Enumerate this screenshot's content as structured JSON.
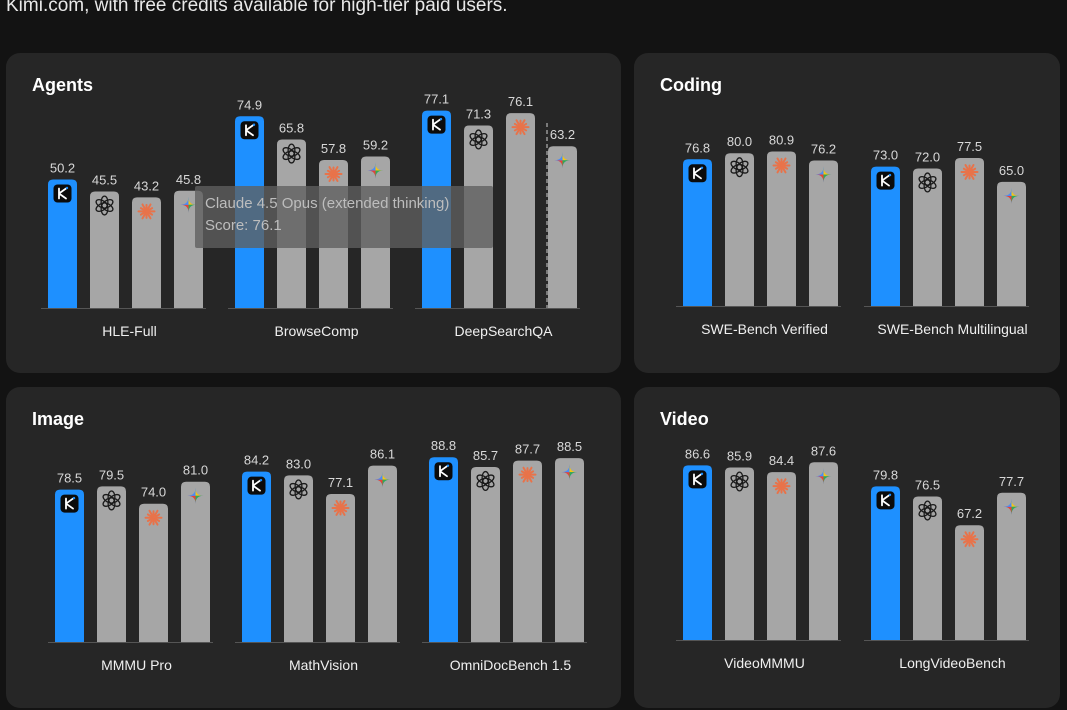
{
  "intro_text": "Kimi.com, with free credits available for high-tier paid users.",
  "colors": {
    "kimi": "#1e90ff",
    "other": "#a6a6a6",
    "panel": "#262626",
    "background": "#131313"
  },
  "models": [
    {
      "name": "Kimi",
      "icon": "kimi-logo-icon"
    },
    {
      "name": "GPT",
      "icon": "openai-logo-icon"
    },
    {
      "name": "Claude",
      "icon": "claude-starburst-icon"
    },
    {
      "name": "Gemini",
      "icon": "gemini-sparkle-icon"
    }
  ],
  "panels": {
    "agents": {
      "title": "Agents"
    },
    "coding": {
      "title": "Coding"
    },
    "image": {
      "title": "Image"
    },
    "video": {
      "title": "Video"
    }
  },
  "tooltip": {
    "model": "Claude 4.5 Opus (extended thinking)",
    "score": "Score: 76.1"
  },
  "chart_data": [
    {
      "type": "bar",
      "title": "Agents",
      "categories": [
        "HLE-Full",
        "BrowseComp",
        "DeepSearchQA"
      ],
      "series": [
        {
          "name": "Kimi",
          "values": [
            50.2,
            74.9,
            77.1
          ]
        },
        {
          "name": "GPT",
          "values": [
            45.5,
            65.8,
            71.3
          ]
        },
        {
          "name": "Claude",
          "values": [
            43.2,
            57.8,
            76.1
          ]
        },
        {
          "name": "Gemini",
          "values": [
            45.8,
            59.2,
            63.2
          ]
        }
      ],
      "value_labels": [
        [
          "50.2",
          "45.5",
          "43.2",
          "45.8"
        ],
        [
          "74.9",
          "65.8",
          "57.8",
          "59.2"
        ],
        [
          "77.1",
          "71.3",
          "76.1",
          "63.2"
        ]
      ]
    },
    {
      "type": "bar",
      "title": "Coding",
      "categories": [
        "SWE-Bench Verified",
        "SWE-Bench Multilingual"
      ],
      "series": [
        {
          "name": "Kimi",
          "values": [
            76.8,
            73.0
          ]
        },
        {
          "name": "GPT",
          "values": [
            80.0,
            72.0
          ]
        },
        {
          "name": "Claude",
          "values": [
            80.9,
            77.5
          ]
        },
        {
          "name": "Gemini",
          "values": [
            76.2,
            65.0
          ]
        }
      ],
      "value_labels": [
        [
          "76.8",
          "80.0",
          "80.9",
          "76.2"
        ],
        [
          "73.0",
          "72.0",
          "77.5",
          "65.0"
        ]
      ]
    },
    {
      "type": "bar",
      "title": "Image",
      "categories": [
        "MMMU Pro",
        "MathVision",
        "OmniDocBench 1.5"
      ],
      "series": [
        {
          "name": "Kimi",
          "values": [
            78.5,
            84.2,
            88.8
          ]
        },
        {
          "name": "GPT",
          "values": [
            79.5,
            83.0,
            85.7
          ]
        },
        {
          "name": "Claude",
          "values": [
            74.0,
            77.1,
            87.7
          ]
        },
        {
          "name": "Gemini",
          "values": [
            81.0,
            86.1,
            88.5
          ]
        }
      ],
      "value_labels": [
        [
          "78.5",
          "79.5",
          "74.0",
          "81.0"
        ],
        [
          "84.2",
          "83.0",
          "77.1",
          "86.1"
        ],
        [
          "88.8",
          "85.7",
          "87.7",
          "88.5"
        ]
      ]
    },
    {
      "type": "bar",
      "title": "Video",
      "categories": [
        "VideoMMMU",
        "LongVideoBench"
      ],
      "series": [
        {
          "name": "Kimi",
          "values": [
            86.6,
            79.8
          ]
        },
        {
          "name": "GPT",
          "values": [
            85.9,
            76.5
          ]
        },
        {
          "name": "Claude",
          "values": [
            84.4,
            67.2
          ]
        },
        {
          "name": "Gemini",
          "values": [
            87.6,
            77.7
          ]
        }
      ],
      "value_labels": [
        [
          "86.6",
          "85.9",
          "84.4",
          "87.6"
        ],
        [
          "79.8",
          "76.5",
          "67.2",
          "77.7"
        ]
      ]
    }
  ]
}
